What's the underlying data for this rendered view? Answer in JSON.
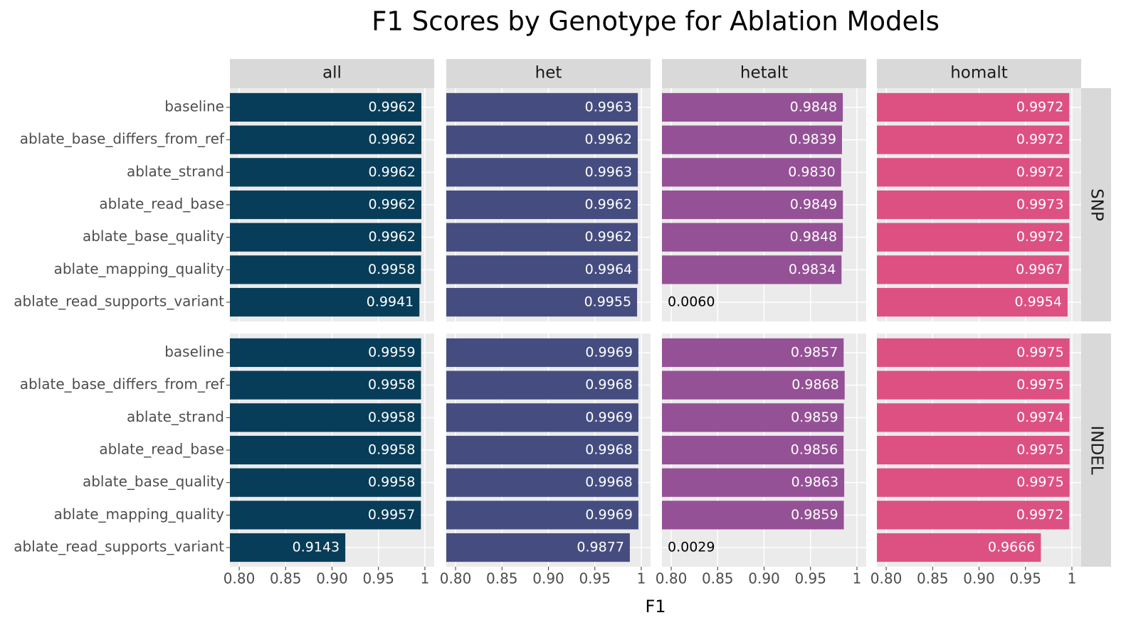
{
  "chart_data": {
    "type": "bar",
    "orientation": "horizontal",
    "title": "F1 Scores by Genotype for Ablation Models",
    "xlabel": "F1",
    "categories": [
      "baseline",
      "ablate_base_differs_from_ref",
      "ablate_strand",
      "ablate_read_base",
      "ablate_base_quality",
      "ablate_mapping_quality",
      "ablate_read_supports_variant"
    ],
    "facet_rows": [
      "SNP",
      "INDEL"
    ],
    "xlim": [
      0.79,
      1.01
    ],
    "xticks": [
      {
        "value": 0.8,
        "label": "0.80"
      },
      0.85,
      {
        "value": 0.9,
        "label": "0.90"
      },
      0.95,
      1
    ],
    "grid": true,
    "series": [
      {
        "name": "all",
        "color": "#083d59",
        "values": [
          [
            0.9962,
            0.9962,
            0.9962,
            0.9962,
            0.9962,
            0.9958,
            0.9941
          ],
          [
            0.9959,
            0.9958,
            0.9958,
            0.9958,
            0.9958,
            0.9957,
            0.9143
          ]
        ],
        "value_labels": [
          [
            "0.9962",
            "0.9962",
            "0.9962",
            "0.9962",
            "0.9962",
            "0.9958",
            "0.9941"
          ],
          [
            "0.9959",
            "0.9958",
            "0.9958",
            "0.9958",
            "0.9958",
            "0.9957",
            "0.9143"
          ]
        ]
      },
      {
        "name": "het",
        "color": "#454d80",
        "values": [
          [
            0.9963,
            0.9962,
            0.9963,
            0.9962,
            0.9962,
            0.9964,
            0.9955
          ],
          [
            0.9969,
            0.9968,
            0.9969,
            0.9968,
            0.9968,
            0.9969,
            0.9877
          ]
        ],
        "value_labels": [
          [
            "0.9963",
            "0.9962",
            "0.9963",
            "0.9962",
            "0.9962",
            "0.9964",
            "0.9955"
          ],
          [
            "0.9969",
            "0.9968",
            "0.9969",
            "0.9968",
            "0.9968",
            "0.9969",
            "0.9877"
          ]
        ]
      },
      {
        "name": "hetalt",
        "color": "#955196",
        "values": [
          [
            0.9848,
            0.9839,
            0.983,
            0.9849,
            0.9848,
            0.9834,
            0.006
          ],
          [
            0.9857,
            0.9868,
            0.9859,
            0.9856,
            0.9863,
            0.9859,
            0.0029
          ]
        ],
        "value_labels": [
          [
            "0.9848",
            "0.9839",
            "0.9830",
            "0.9849",
            "0.9848",
            "0.9834",
            "0.0060"
          ],
          [
            "0.9857",
            "0.9868",
            "0.9859",
            "0.9856",
            "0.9863",
            "0.9859",
            "0.0029"
          ]
        ]
      },
      {
        "name": "homalt",
        "color": "#dd5182",
        "values": [
          [
            0.9972,
            0.9972,
            0.9972,
            0.9973,
            0.9972,
            0.9967,
            0.9954
          ],
          [
            0.9975,
            0.9975,
            0.9974,
            0.9975,
            0.9975,
            0.9972,
            0.9666
          ]
        ],
        "value_labels": [
          [
            "0.9972",
            "0.9972",
            "0.9972",
            "0.9973",
            "0.9972",
            "0.9967",
            "0.9954"
          ],
          [
            "0.9975",
            "0.9975",
            "0.9974",
            "0.9975",
            "0.9975",
            "0.9972",
            "0.9666"
          ]
        ]
      }
    ]
  }
}
